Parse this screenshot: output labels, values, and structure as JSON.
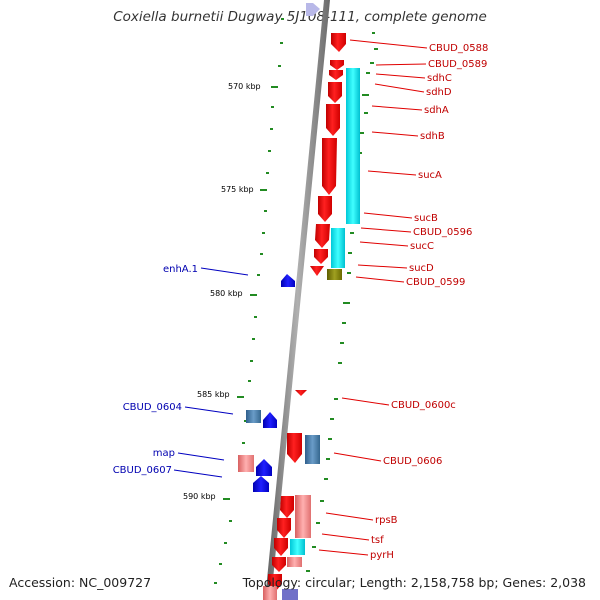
{
  "title": "Coxiella burnetii Dugway 5J108-111, complete genome",
  "footer": {
    "accession": "Accession: NC_009727",
    "topology": "Topology: circular; Length: 2,158,758 bp; Genes: 2,038"
  },
  "ticks": [
    "570 kbp",
    "575 kbp",
    "580 kbp",
    "585 kbp",
    "590 kbp"
  ],
  "genes_right": [
    "CBUD_0588",
    "CBUD_0589",
    "sdhC",
    "sdhD",
    "sdhA",
    "sdhB",
    "sucA",
    "sucB",
    "CBUD_0596",
    "sucC",
    "sucD",
    "CBUD_0599",
    "CBUD_0600c",
    "CBUD_0606",
    "rpsB",
    "tsf",
    "pyrH"
  ],
  "genes_left": [
    "enhA.1",
    "CBUD_0604",
    "map",
    "CBUD_0607"
  ],
  "colors": {
    "forward_strand": "#ff0000",
    "reverse_strand": "#0000ff",
    "cog_cyan": "#00ffff",
    "cog_olive": "#808000",
    "cog_pink": "#f08080",
    "cog_steelblue": "#4682b4",
    "gc_skew": "#228b22",
    "backbone": "#808080"
  }
}
